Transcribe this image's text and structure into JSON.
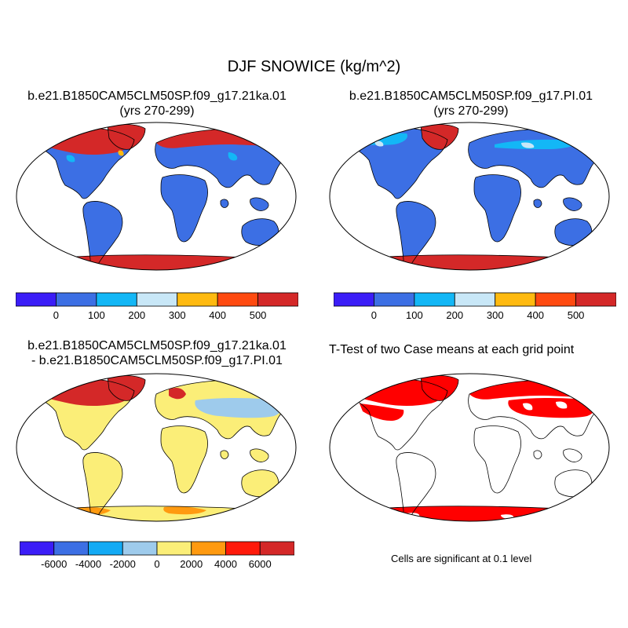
{
  "title": "DJF SNOWICE (kg/m^2)",
  "colors": {
    "c1": "#3b1df7",
    "c2": "#3c6fe4",
    "c3": "#13b7f6",
    "c4": "#c8e7f7",
    "c5": "#ffba10",
    "c6": "#ff4a10",
    "c7": "#d42828",
    "d1": "#3b1df7",
    "d2": "#3c6fe4",
    "d3": "#13aaf4",
    "d4": "#9ecbec",
    "d5": "#fbee78",
    "d6": "#ff9a10",
    "d7": "#ff1a0a",
    "d8": "#d42828",
    "sig": "#ff0000",
    "ocean": "#ffffff",
    "coast": "#000000"
  },
  "panels": {
    "top_left": {
      "title_line1": "b.e21.B1850CAM5CLM50SP.f09_g17.21ka.01",
      "title_line2": "(yrs 270-299)"
    },
    "top_right": {
      "title_line1": "b.e21.B1850CAM5CLM50SP.f09_g17.PI.01",
      "title_line2": "(yrs 270-299)"
    },
    "bottom_left": {
      "title_line1": "b.e21.B1850CAM5CLM50SP.f09_g17.21ka.01",
      "title_line2": "- b.e21.B1850CAM5CLM50SP.f09_g17.PI.01"
    },
    "bottom_right": {
      "title": "T-Test of two Case means at each grid point",
      "note": "Cells are significant at 0.1 level"
    }
  },
  "colorbars": {
    "case_labels": [
      "0",
      "100",
      "200",
      "300",
      "400",
      "500"
    ],
    "diff_labels": [
      "-6000",
      "-4000",
      "-2000",
      "0",
      "2000",
      "4000",
      "6000"
    ]
  }
}
